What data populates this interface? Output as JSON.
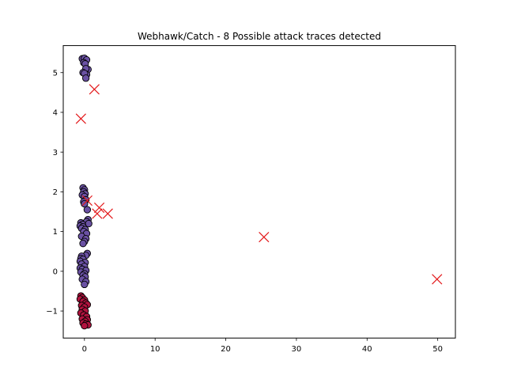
{
  "chart_data": {
    "type": "scatter",
    "title": "Webhawk/Catch - 8 Possible attack traces detected",
    "xlabel": "",
    "ylabel": "",
    "xlim": [
      -3,
      52.5
    ],
    "ylim": [
      -1.68,
      5.68
    ],
    "xticks": [
      0,
      10,
      20,
      30,
      40,
      50
    ],
    "yticks": [
      -1,
      0,
      1,
      2,
      3,
      4,
      5
    ],
    "grid": false,
    "legend": "none",
    "colors": {
      "cluster_violet": "#6a51a3",
      "cluster_crimson": "#b2133f",
      "point_edge": "#000000",
      "anomaly_marker": "#e31a1c"
    },
    "series": [
      {
        "kind": "cluster",
        "color": "#6a51a3",
        "points": [
          [
            -0.3,
            5.35
          ],
          [
            0.0,
            5.36
          ],
          [
            0.3,
            5.32
          ],
          [
            -0.1,
            5.25
          ],
          [
            0.1,
            5.22
          ],
          [
            0.5,
            5.08
          ],
          [
            0.2,
            5.1
          ],
          [
            -0.2,
            5.0
          ],
          [
            0.3,
            4.95
          ],
          [
            0.0,
            4.98
          ],
          [
            0.2,
            4.86
          ],
          [
            -0.2,
            2.1
          ],
          [
            0.0,
            2.05
          ],
          [
            -0.1,
            2.0
          ],
          [
            0.1,
            1.95
          ],
          [
            -0.3,
            1.92
          ],
          [
            0.0,
            1.88
          ],
          [
            0.2,
            1.8
          ],
          [
            -0.1,
            1.75
          ],
          [
            0.0,
            1.7
          ],
          [
            0.4,
            1.55
          ],
          [
            0.5,
            1.3
          ],
          [
            0.3,
            1.25
          ],
          [
            0.6,
            1.2
          ],
          [
            -0.5,
            1.22
          ],
          [
            -0.3,
            1.18
          ],
          [
            -0.6,
            1.14
          ],
          [
            -0.2,
            1.12
          ],
          [
            -0.4,
            1.08
          ],
          [
            0.1,
            1.05
          ],
          [
            -0.1,
            1.0
          ],
          [
            0.3,
            0.95
          ],
          [
            -0.4,
            0.88
          ],
          [
            0.2,
            0.82
          ],
          [
            0.0,
            0.75
          ],
          [
            -0.2,
            0.7
          ],
          [
            0.4,
            0.45
          ],
          [
            0.2,
            0.4
          ],
          [
            -0.4,
            0.38
          ],
          [
            -0.5,
            0.32
          ],
          [
            -0.2,
            0.3
          ],
          [
            -0.6,
            0.25
          ],
          [
            0.1,
            0.22
          ],
          [
            -0.4,
            0.18
          ],
          [
            0.0,
            0.12
          ],
          [
            -0.6,
            0.08
          ],
          [
            -0.3,
            0.05
          ],
          [
            0.2,
            0.02
          ],
          [
            -0.5,
            -0.02
          ],
          [
            0.0,
            -0.06
          ],
          [
            -0.2,
            -0.1
          ],
          [
            0.1,
            -0.14
          ],
          [
            -0.3,
            -0.2
          ],
          [
            0.2,
            -0.26
          ],
          [
            0.0,
            -0.33
          ]
        ]
      },
      {
        "kind": "cluster",
        "color": "#b2133f",
        "points": [
          [
            -0.5,
            -0.62
          ],
          [
            -0.3,
            -0.66
          ],
          [
            -0.6,
            -0.7
          ],
          [
            0.0,
            -0.72
          ],
          [
            -0.2,
            -0.76
          ],
          [
            0.2,
            -0.8
          ],
          [
            0.4,
            -0.84
          ],
          [
            -0.4,
            -0.86
          ],
          [
            0.0,
            -0.9
          ],
          [
            -0.3,
            -0.96
          ],
          [
            0.1,
            -1.0
          ],
          [
            -0.5,
            -1.05
          ],
          [
            -0.1,
            -1.1
          ],
          [
            0.3,
            -1.14
          ],
          [
            -0.3,
            -1.2
          ],
          [
            0.4,
            -1.22
          ],
          [
            0.1,
            -1.26
          ],
          [
            -0.2,
            -1.3
          ],
          [
            0.2,
            -1.33
          ],
          [
            0.5,
            -1.35
          ],
          [
            0.0,
            -1.37
          ]
        ]
      },
      {
        "kind": "anomaly",
        "color": "#e31a1c",
        "marker": "x",
        "points": [
          [
            1.4,
            4.58
          ],
          [
            -0.5,
            3.84
          ],
          [
            0.4,
            1.78
          ],
          [
            2.1,
            1.6
          ],
          [
            1.8,
            1.45
          ],
          [
            3.3,
            1.45
          ],
          [
            25.4,
            0.86
          ],
          [
            49.9,
            -0.2
          ]
        ]
      }
    ]
  }
}
